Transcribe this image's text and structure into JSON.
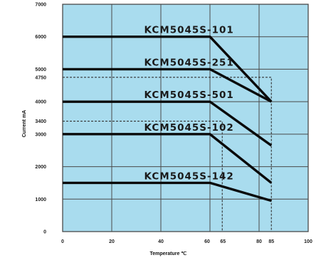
{
  "chart_data": {
    "type": "line",
    "xlabel": "Temperature ℃",
    "ylabel": "Current  mA",
    "xlim": [
      0,
      100
    ],
    "ylim": [
      0,
      7000
    ],
    "x_ticks": [
      {
        "value": 0,
        "label": "0"
      },
      {
        "value": 20,
        "label": "20"
      },
      {
        "value": 40,
        "label": "40"
      },
      {
        "value": 60,
        "label": "60"
      },
      {
        "value": 65,
        "label": "65"
      },
      {
        "value": 80,
        "label": "80"
      },
      {
        "value": 85,
        "label": "85"
      },
      {
        "value": 100,
        "label": "100"
      }
    ],
    "y_ticks": [
      {
        "value": 0,
        "label": "0"
      },
      {
        "value": 1000,
        "label": "1000"
      },
      {
        "value": 2000,
        "label": "2000"
      },
      {
        "value": 3000,
        "label": "3000"
      },
      {
        "value": 3400,
        "label": "3400"
      },
      {
        "value": 4000,
        "label": "4000"
      },
      {
        "value": 4750,
        "label": "4750"
      },
      {
        "value": 5000,
        "label": "5000"
      },
      {
        "value": 6000,
        "label": "6000"
      },
      {
        "value": 7000,
        "label": "7000"
      }
    ],
    "grid": true,
    "background_color": "#a9dcee",
    "grid_color": "#4a4a4a",
    "line_color": "#0a0a0a",
    "series": [
      {
        "name": "KCM5045S-101",
        "x": [
          0,
          60,
          85
        ],
        "y": [
          6000,
          6000,
          4000
        ]
      },
      {
        "name": "KCM5045S-251",
        "x": [
          0,
          60,
          85
        ],
        "y": [
          5000,
          5000,
          4000
        ]
      },
      {
        "name": "KCM5045S-501",
        "x": [
          0,
          60,
          85
        ],
        "y": [
          4000,
          4000,
          2650
        ]
      },
      {
        "name": "KCM5045S-102",
        "x": [
          0,
          60,
          85
        ],
        "y": [
          3000,
          3000,
          1500
        ]
      },
      {
        "name": "KCM5045S-142",
        "x": [
          0,
          60,
          85
        ],
        "y": [
          1500,
          1500,
          950
        ]
      }
    ],
    "reference_lines": [
      {
        "x": [
          0,
          85,
          85
        ],
        "y": [
          4750,
          4750,
          0
        ]
      },
      {
        "x": [
          0,
          65,
          65
        ],
        "y": [
          3400,
          3400,
          0
        ]
      }
    ]
  }
}
